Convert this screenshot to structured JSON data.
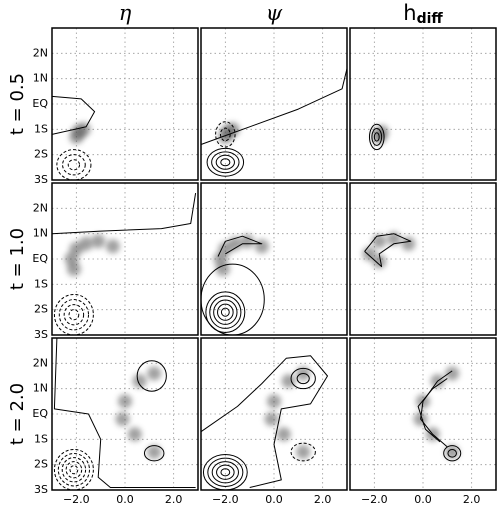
{
  "chart_data": {
    "type": "contour",
    "columns": [
      {
        "label": "η"
      },
      {
        "label": "ψ"
      },
      {
        "label": "h",
        "subscript": "diff"
      }
    ],
    "rows": [
      "t = 0.5",
      "t = 1.0",
      "t = 2.0"
    ],
    "xlim": [
      -3,
      3
    ],
    "ylim": [
      -3,
      3
    ],
    "xticks": [
      {
        "value": -2,
        "label": "−2.0"
      },
      {
        "value": 0,
        "label": "0.0"
      },
      {
        "value": 2,
        "label": "2.0"
      }
    ],
    "yticks": [
      {
        "value": 2,
        "label": "2N"
      },
      {
        "value": 1,
        "label": "1N"
      },
      {
        "value": 0,
        "label": "EQ"
      },
      {
        "value": -1,
        "label": "1S"
      },
      {
        "value": -2,
        "label": "2S"
      },
      {
        "value": -3,
        "label": "3S"
      }
    ],
    "grid": true,
    "panels": [
      {
        "row": 0,
        "col": 0,
        "shading": [
          [
            -2,
            -1.3
          ],
          [
            -1.9,
            -1.1
          ],
          [
            -1.7,
            -1.0
          ]
        ],
        "contours": [
          {
            "x": -2.1,
            "y": -2.4,
            "rx": 0.7,
            "ry": 0.6,
            "n": 3,
            "dashed": true
          }
        ],
        "lines": [
          [
            [
              -3,
              0.3
            ],
            [
              -1.8,
              0.2
            ],
            [
              -1.25,
              -0.3
            ],
            [
              -1.6,
              -0.9
            ],
            [
              -3,
              -1.2
            ]
          ]
        ]
      },
      {
        "row": 0,
        "col": 1,
        "shading": [
          [
            -2,
            -1.3
          ],
          [
            -1.9,
            -1.1
          ],
          [
            -1.7,
            -1.0
          ]
        ],
        "contours": [
          {
            "x": -2,
            "y": -1.2,
            "rx": 0.4,
            "ry": 0.5,
            "n": 2,
            "dashed": true
          },
          {
            "x": -2,
            "y": -2.3,
            "rx": 0.75,
            "ry": 0.55,
            "n": 4,
            "dashed": false
          }
        ],
        "lines": [
          [
            [
              -3,
              -1.6
            ],
            [
              -1,
              -0.9
            ],
            [
              1,
              -0.2
            ],
            [
              2.8,
              0.6
            ],
            [
              3,
              1.4
            ]
          ]
        ]
      },
      {
        "row": 0,
        "col": 2,
        "shading": [
          [
            -1.8,
            -1.3
          ],
          [
            -1.7,
            -1.1
          ]
        ],
        "contours": [
          {
            "x": -1.9,
            "y": -1.3,
            "rx": 0.3,
            "ry": 0.5,
            "n": 3,
            "dashed": false
          }
        ],
        "lines": []
      },
      {
        "row": 1,
        "col": 0,
        "shading": [
          [
            -2.2,
            0
          ],
          [
            -2,
            0.4
          ],
          [
            -1.6,
            0.6
          ],
          [
            -1.1,
            0.7
          ],
          [
            -0.5,
            0.5
          ],
          [
            -2.1,
            -0.4
          ]
        ],
        "contours": [
          {
            "x": -2.1,
            "y": -2.2,
            "rx": 0.8,
            "ry": 0.8,
            "n": 4,
            "dashed": true
          }
        ],
        "lines": [
          [
            [
              -3,
              1.0
            ],
            [
              -1,
              1.1
            ],
            [
              1.5,
              1.2
            ],
            [
              2.7,
              1.4
            ],
            [
              2.9,
              2.6
            ]
          ]
        ]
      },
      {
        "row": 1,
        "col": 1,
        "shading": [
          [
            -2.2,
            0
          ],
          [
            -2,
            0.4
          ],
          [
            -1.6,
            0.6
          ],
          [
            -1.1,
            0.7
          ],
          [
            -0.5,
            0.5
          ],
          [
            -2.1,
            -0.4
          ]
        ],
        "contours": [
          {
            "x": -2,
            "y": -2.1,
            "rx": 0.8,
            "ry": 0.8,
            "n": 5,
            "dashed": false
          },
          {
            "x": -1.7,
            "y": -1.6,
            "rx": 1.3,
            "ry": 1.4,
            "n": 1,
            "dashed": false
          }
        ],
        "lines": [
          [
            [
              -2.3,
              0.1
            ],
            [
              -2,
              0.7
            ],
            [
              -1.3,
              0.9
            ],
            [
              -0.5,
              0.6
            ],
            [
              -1.3,
              0.6
            ],
            [
              -2,
              0.2
            ]
          ]
        ]
      },
      {
        "row": 1,
        "col": 2,
        "shading": [
          [
            -2.2,
            0.2
          ],
          [
            -1.8,
            0.7
          ],
          [
            -1.2,
            0.8
          ],
          [
            -0.6,
            0.6
          ],
          [
            -1.8,
            -0.1
          ]
        ],
        "contours": [],
        "lines": [
          [
            [
              -2.4,
              0.3
            ],
            [
              -1.9,
              0.9
            ],
            [
              -1.2,
              1.0
            ],
            [
              -0.5,
              0.7
            ],
            [
              -1.2,
              0.6
            ],
            [
              -1.8,
              0.2
            ],
            [
              -1.7,
              -0.3
            ],
            [
              -2.4,
              0.3
            ]
          ]
        ]
      },
      {
        "row": 2,
        "col": 0,
        "shading": [
          [
            1.2,
            1.6
          ],
          [
            0.6,
            1.3
          ],
          [
            0,
            0.5
          ],
          [
            -0.1,
            -0.2
          ],
          [
            0.4,
            -0.8
          ],
          [
            1.2,
            -1.5
          ]
        ],
        "contours": [
          {
            "x": 1.1,
            "y": 1.5,
            "rx": 0.6,
            "ry": 0.6,
            "n": 1,
            "dashed": false
          },
          {
            "x": 1.2,
            "y": -1.55,
            "rx": 0.4,
            "ry": 0.3,
            "n": 1,
            "dashed": false
          },
          {
            "x": -2.1,
            "y": -2.2,
            "rx": 0.8,
            "ry": 0.8,
            "n": 5,
            "dashed": true
          }
        ],
        "lines": [
          [
            [
              -2.8,
              3
            ],
            [
              -2.9,
              0.2
            ],
            [
              -1.5,
              0
            ],
            [
              -1,
              -1
            ],
            [
              -1.1,
              -2.5
            ],
            [
              -0.6,
              -2.9
            ],
            [
              2.9,
              -2.9
            ]
          ]
        ]
      },
      {
        "row": 2,
        "col": 1,
        "shading": [
          [
            1.2,
            1.6
          ],
          [
            0.6,
            1.3
          ],
          [
            0,
            0.5
          ],
          [
            -0.1,
            -0.2
          ],
          [
            0.4,
            -0.8
          ],
          [
            1.2,
            -1.5
          ]
        ],
        "contours": [
          {
            "x": -2,
            "y": -2.3,
            "rx": 0.9,
            "ry": 0.7,
            "n": 5,
            "dashed": false
          },
          {
            "x": 1.2,
            "y": 1.4,
            "rx": 0.5,
            "ry": 0.4,
            "n": 2,
            "dashed": false
          },
          {
            "x": 1.2,
            "y": -1.5,
            "rx": 0.5,
            "ry": 0.35,
            "n": 1,
            "dashed": true
          }
        ],
        "lines": [
          [
            [
              -3,
              -0.7
            ],
            [
              -1.5,
              0.3
            ],
            [
              -0.5,
              1.2
            ],
            [
              0.5,
              2.2
            ],
            [
              1.5,
              2.3
            ],
            [
              2.2,
              1.5
            ],
            [
              1.5,
              0.4
            ],
            [
              0.3,
              0.2
            ],
            [
              0,
              -1.2
            ],
            [
              0.3,
              -2.6
            ],
            [
              -1,
              -2.9
            ]
          ]
        ]
      },
      {
        "row": 2,
        "col": 2,
        "shading": [
          [
            1.2,
            1.6
          ],
          [
            0.6,
            1.3
          ],
          [
            0,
            0.5
          ],
          [
            -0.1,
            -0.2
          ],
          [
            0.4,
            -0.8
          ],
          [
            1.2,
            -1.5
          ]
        ],
        "contours": [
          {
            "x": 1.2,
            "y": -1.55,
            "rx": 0.35,
            "ry": 0.3,
            "n": 2,
            "dashed": false
          }
        ],
        "lines": [
          [
            [
              1.2,
              1.7
            ],
            [
              0.6,
              1.3
            ],
            [
              0,
              0.5
            ],
            [
              -0.1,
              -0.2
            ],
            [
              0.4,
              -0.8
            ],
            [
              1.0,
              -1.3
            ]
          ],
          [
            [
              1.0,
              1.4
            ],
            [
              0.4,
              1.0
            ],
            [
              -0.2,
              0.3
            ],
            [
              0.1,
              -0.6
            ],
            [
              0.7,
              -1.1
            ]
          ]
        ]
      }
    ]
  }
}
